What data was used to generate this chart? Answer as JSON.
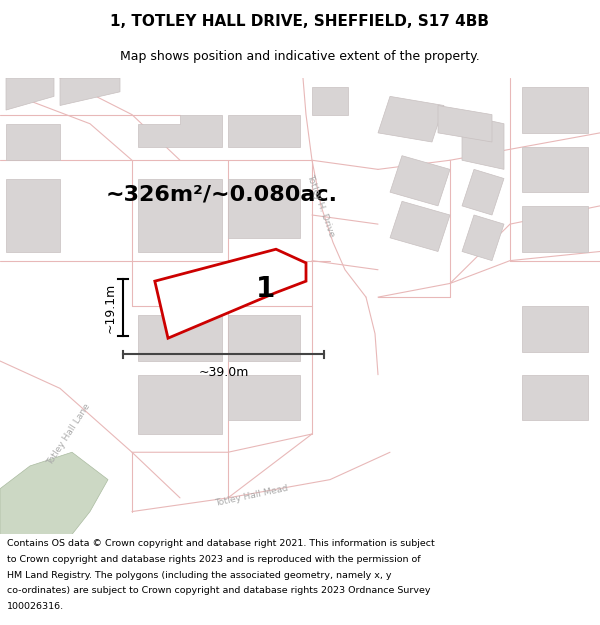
{
  "title_line1": "1, TOTLEY HALL DRIVE, SHEFFIELD, S17 4BB",
  "title_line2": "Map shows position and indicative extent of the property.",
  "area_text": "~326m²/~0.080ac.",
  "plot_number": "1",
  "dim_width": "~39.0m",
  "dim_height": "~19.1m",
  "footer_lines": [
    "Contains OS data © Crown copyright and database right 2021. This information is subject",
    "to Crown copyright and database rights 2023 and is reproduced with the permission of",
    "HM Land Registry. The polygons (including the associated geometry, namely x, y",
    "co-ordinates) are subject to Crown copyright and database rights 2023 Ordnance Survey",
    "100026316."
  ],
  "map_bg": "#f9f7f7",
  "plot_fill": "#f5f0f0",
  "plot_border": "#cc0000",
  "road_outline": "#e8b8b8",
  "building_fill": "#d8d4d4",
  "building_edge": "#c8c0c0",
  "street_label_color": "#aaaaaa",
  "green_fill": "#ccd8c4",
  "green_edge": "#aabba0",
  "title_fontsize": 11,
  "subtitle_fontsize": 9,
  "area_fontsize": 16,
  "plot_num_fontsize": 20,
  "footer_fontsize": 6.8
}
